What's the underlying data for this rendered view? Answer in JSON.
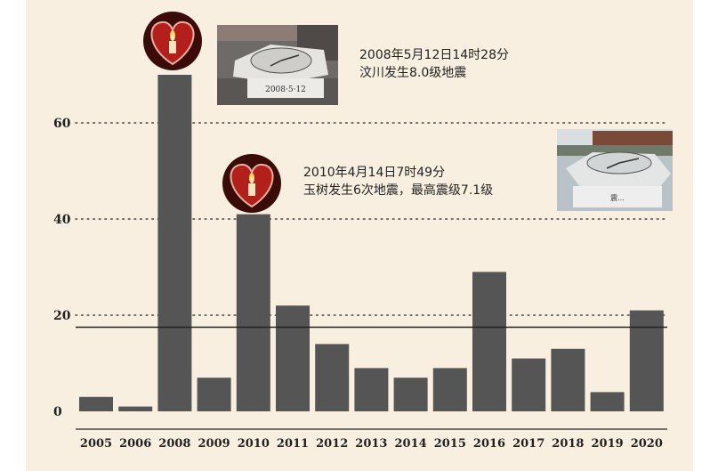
{
  "chart_data": {
    "type": "bar",
    "categories": [
      "2005",
      "2006",
      "2008",
      "2009",
      "2010",
      "2011",
      "2012",
      "2013",
      "2014",
      "2015",
      "2016",
      "2017",
      "2018",
      "2019",
      "2020"
    ],
    "values": [
      3,
      1,
      70,
      7,
      41,
      22,
      14,
      9,
      7,
      9,
      29,
      11,
      13,
      4,
      21
    ],
    "ylim": [
      0,
      70
    ],
    "yticks": [
      0,
      20,
      40,
      60
    ],
    "reference_line": 17.5,
    "grid": "dotted horizontal",
    "bar_color": "#555555",
    "title": "",
    "xlabel": "",
    "ylabel": "",
    "annotations": [
      {
        "line1": "2008年5月12日14时28分",
        "line2": "汶川发生8.0级地震"
      },
      {
        "line1": "2010年4月14日7时49分",
        "line2": "玉树发生6次地震，最高震级7.1级"
      }
    ]
  },
  "photos": {
    "photo1_caption": "2008·5·12",
    "photo2_caption": "震..."
  },
  "colors": {
    "background": "#f8efe0",
    "bar": "#555555",
    "candle_heart": "#b3201c"
  }
}
